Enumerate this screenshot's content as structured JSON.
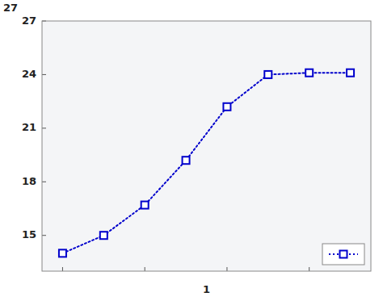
{
  "chart_data": {
    "type": "line",
    "xlabel": "1",
    "annotations": [
      "27"
    ],
    "x": [
      1,
      2,
      3,
      4,
      5,
      6,
      7,
      8
    ],
    "series": [
      {
        "values": [
          14.0,
          15.0,
          16.7,
          19.2,
          22.2,
          24.0,
          24.1,
          24.1
        ],
        "color": "#0000CC",
        "marker": "square",
        "line_style": "dotted"
      }
    ],
    "xlim": [
      0.5,
      8.5
    ],
    "xticks": [
      1,
      3,
      5,
      7
    ],
    "ylim": [
      13.0,
      27.0
    ],
    "yticks": [
      15,
      18,
      21,
      24,
      27
    ],
    "tick_labels": "y",
    "grid": false,
    "legend": "lower right"
  }
}
